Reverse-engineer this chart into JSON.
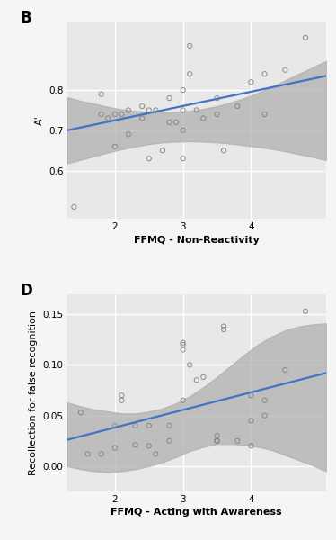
{
  "panel_B": {
    "label": "B",
    "xlabel": "FFMQ - Non-Reactivity",
    "ylabel": "A'",
    "xlim": [
      1.3,
      5.1
    ],
    "ylim": [
      0.48,
      0.97
    ],
    "xticks": [
      2,
      3,
      4
    ],
    "yticks": [
      0.6,
      0.7,
      0.8
    ],
    "scatter_x": [
      1.4,
      1.8,
      1.8,
      1.9,
      2.0,
      2.0,
      2.1,
      2.2,
      2.2,
      2.4,
      2.4,
      2.5,
      2.5,
      2.6,
      2.7,
      2.8,
      2.8,
      2.9,
      3.0,
      3.0,
      3.0,
      3.0,
      3.1,
      3.1,
      3.2,
      3.3,
      3.5,
      3.5,
      3.6,
      3.8,
      4.0,
      4.2,
      4.2,
      4.5,
      4.8
    ],
    "scatter_y": [
      0.51,
      0.79,
      0.74,
      0.73,
      0.66,
      0.74,
      0.74,
      0.69,
      0.75,
      0.76,
      0.73,
      0.75,
      0.63,
      0.75,
      0.65,
      0.78,
      0.72,
      0.72,
      0.75,
      0.8,
      0.7,
      0.63,
      0.84,
      0.91,
      0.75,
      0.73,
      0.74,
      0.78,
      0.65,
      0.76,
      0.82,
      0.84,
      0.74,
      0.85,
      0.93
    ],
    "line_x": [
      1.3,
      5.1
    ],
    "line_y": [
      0.7,
      0.835
    ],
    "ci_x": [
      1.3,
      1.5,
      1.7,
      1.9,
      2.1,
      2.3,
      2.5,
      2.7,
      2.9,
      3.1,
      3.3,
      3.5,
      3.7,
      3.9,
      4.1,
      4.3,
      4.5,
      4.7,
      4.9,
      5.1
    ],
    "ci_upper": [
      0.782,
      0.773,
      0.766,
      0.758,
      0.752,
      0.748,
      0.745,
      0.744,
      0.745,
      0.748,
      0.753,
      0.76,
      0.769,
      0.78,
      0.793,
      0.808,
      0.824,
      0.84,
      0.856,
      0.872
    ],
    "ci_lower": [
      0.618,
      0.627,
      0.636,
      0.645,
      0.653,
      0.66,
      0.666,
      0.67,
      0.672,
      0.673,
      0.672,
      0.67,
      0.667,
      0.663,
      0.659,
      0.654,
      0.648,
      0.641,
      0.634,
      0.626
    ]
  },
  "panel_D": {
    "label": "D",
    "xlabel": "FFMQ - Acting with Awareness",
    "ylabel": "Recollection for false recognition",
    "xlim": [
      1.3,
      5.1
    ],
    "ylim": [
      -0.025,
      0.17
    ],
    "xticks": [
      2,
      3,
      4
    ],
    "yticks": [
      0.0,
      0.05,
      0.1,
      0.15
    ],
    "scatter_x": [
      1.5,
      1.6,
      1.8,
      2.0,
      2.0,
      2.1,
      2.1,
      2.3,
      2.3,
      2.5,
      2.5,
      2.6,
      2.8,
      2.8,
      3.0,
      3.0,
      3.0,
      3.0,
      3.1,
      3.2,
      3.3,
      3.5,
      3.5,
      3.5,
      3.6,
      3.6,
      3.8,
      4.0,
      4.0,
      4.0,
      4.2,
      4.2,
      4.5,
      4.8
    ],
    "scatter_y": [
      0.053,
      0.012,
      0.012,
      0.04,
      0.018,
      0.07,
      0.065,
      0.04,
      0.021,
      0.04,
      0.02,
      0.012,
      0.025,
      0.04,
      0.122,
      0.12,
      0.115,
      0.065,
      0.1,
      0.085,
      0.088,
      0.03,
      0.025,
      0.025,
      0.135,
      0.138,
      0.025,
      0.07,
      0.045,
      0.02,
      0.065,
      0.05,
      0.095,
      0.153
    ],
    "line_x": [
      1.3,
      5.1
    ],
    "line_y": [
      0.026,
      0.092
    ],
    "ci_x": [
      1.3,
      1.5,
      1.7,
      1.9,
      2.1,
      2.3,
      2.5,
      2.7,
      2.9,
      3.1,
      3.3,
      3.5,
      3.7,
      3.9,
      4.1,
      4.3,
      4.5,
      4.7,
      4.9,
      5.1
    ],
    "ci_upper": [
      0.063,
      0.059,
      0.056,
      0.054,
      0.052,
      0.052,
      0.054,
      0.057,
      0.062,
      0.069,
      0.078,
      0.088,
      0.099,
      0.11,
      0.12,
      0.128,
      0.134,
      0.138,
      0.14,
      0.141
    ],
    "ci_lower": [
      0.0,
      -0.003,
      -0.005,
      -0.006,
      -0.005,
      -0.003,
      0.0,
      0.004,
      0.009,
      0.015,
      0.019,
      0.022,
      0.022,
      0.021,
      0.019,
      0.016,
      0.011,
      0.006,
      0.001,
      -0.005
    ]
  },
  "line_color": "#4472C4",
  "ci_color": "#b0b0b0",
  "scatter_color": "#808080",
  "plot_bg_color": "#e8e8e8",
  "fig_bg_color": "#f5f5f5",
  "grid_color": "#ffffff",
  "xlabel_fontsize": 8,
  "ylabel_fontsize": 8,
  "tick_fontsize": 7.5,
  "panel_label_fontsize": 12
}
